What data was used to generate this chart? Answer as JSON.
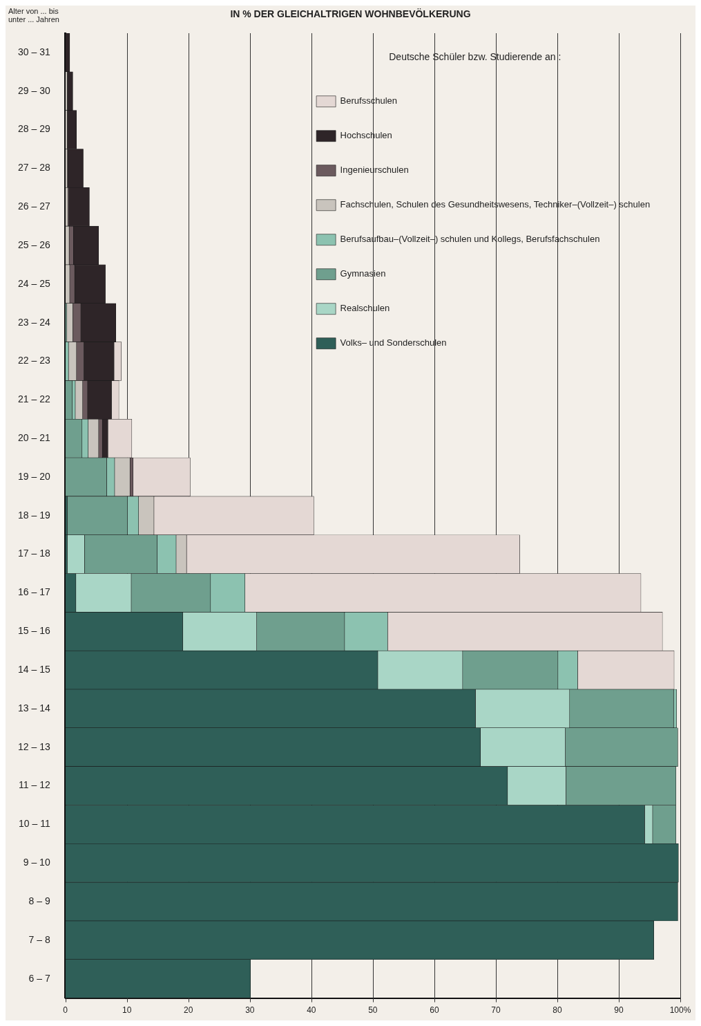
{
  "chart_data": {
    "type": "bar",
    "orientation": "horizontal",
    "stacked": true,
    "title": "IN % DER GLEICHALTRIGEN WOHNBEVÖLKERUNG",
    "ylabel": "Alter von ... bis unter ... Jahren",
    "legend_title": "Deutsche Schüler bzw. Studierende an :",
    "categories": [
      "30 – 31",
      "29 – 30",
      "28 – 29",
      "27 – 28",
      "26 – 27",
      "25 – 26",
      "24 – 25",
      "23 – 24",
      "22 – 23",
      "21 – 22",
      "20 – 21",
      "19 – 20",
      "18 – 19",
      "17 – 18",
      "16 – 17",
      "15 – 16",
      "14 – 15",
      "13 – 14",
      "12 – 13",
      "11 – 12",
      "10 – 11",
      "9 – 10",
      "8 – 9",
      "7 – 8",
      "6 – 7"
    ],
    "series": [
      {
        "name": "Volks– und Sonderschulen",
        "color": "#2f5f58",
        "values": [
          0,
          0,
          0,
          0,
          0,
          0,
          0,
          0,
          0,
          0,
          0,
          0,
          0.3,
          0.3,
          1.7,
          19.1,
          50.8,
          66.7,
          67.5,
          71.9,
          94.2,
          99.7,
          99.6,
          95.7,
          30.1
        ]
      },
      {
        "name": "Realschulen",
        "color": "#a9d6c6",
        "values": [
          0,
          0,
          0,
          0,
          0,
          0,
          0,
          0,
          0,
          0,
          0,
          0,
          0,
          2.8,
          9.0,
          12.0,
          13.8,
          15.3,
          13.8,
          9.5,
          1.3,
          0,
          0,
          0,
          0
        ]
      },
      {
        "name": "Gymnasien",
        "color": "#6f9f8e",
        "values": [
          0,
          0,
          0,
          0,
          0,
          0,
          0,
          0,
          0,
          1.1,
          2.7,
          6.7,
          9.8,
          11.8,
          12.9,
          14.3,
          15.5,
          16.9,
          18.3,
          17.9,
          3.8,
          0,
          0,
          0,
          0
        ]
      },
      {
        "name": "Berufsaufbau–(Vollzeit–) schulen und Kollegs, Berufsfachschulen",
        "color": "#8cc2b0",
        "values": [
          0,
          0,
          0,
          0,
          0,
          0,
          0,
          0.2,
          0.5,
          0.5,
          1.0,
          1.3,
          1.8,
          3.1,
          5.6,
          7.0,
          3.2,
          0.5,
          0,
          0,
          0,
          0,
          0,
          0,
          0
        ]
      },
      {
        "name": "Fachschulen, Schulen des Gesundheitswesens, Techniker–(Vollzeit–) schulen",
        "color": "#c9c4bd",
        "values": [
          0,
          0.3,
          0.3,
          0.3,
          0.4,
          0.6,
          0.7,
          1.0,
          1.3,
          1.2,
          1.7,
          2.5,
          2.5,
          1.7,
          0,
          0,
          0,
          0,
          0,
          0,
          0,
          0,
          0,
          0,
          0
        ]
      },
      {
        "name": "Ingenieurschulen",
        "color": "#6b5a5e",
        "values": [
          0,
          0,
          0,
          0.1,
          0.2,
          0.7,
          0.8,
          1.3,
          1.2,
          0.8,
          0.6,
          0.5,
          0,
          0,
          0,
          0,
          0,
          0,
          0,
          0,
          0,
          0,
          0,
          0,
          0
        ]
      },
      {
        "name": "Hochschulen",
        "color": "#2e2528",
        "values": [
          0.7,
          0.9,
          1.5,
          2.5,
          3.3,
          4.1,
          5.0,
          5.7,
          4.9,
          3.9,
          0.9,
          0,
          0,
          0,
          0,
          0,
          0,
          0,
          0,
          0,
          0,
          0,
          0,
          0,
          0
        ]
      },
      {
        "name": "Berufsschulen",
        "color": "#e4d8d4",
        "values": [
          0,
          0,
          0,
          0,
          0,
          0,
          0,
          0,
          1.2,
          1.2,
          3.9,
          9.3,
          26.0,
          54.2,
          64.4,
          44.7,
          15.7,
          0,
          0,
          0,
          0,
          0,
          0,
          0,
          0
        ]
      }
    ],
    "xlim": [
      0,
      100
    ],
    "xticks": [
      0,
      10,
      20,
      30,
      40,
      50,
      60,
      70,
      80,
      90,
      {
        "value": 100,
        "label": "100%"
      }
    ],
    "grid": "x",
    "legend": "top right"
  }
}
